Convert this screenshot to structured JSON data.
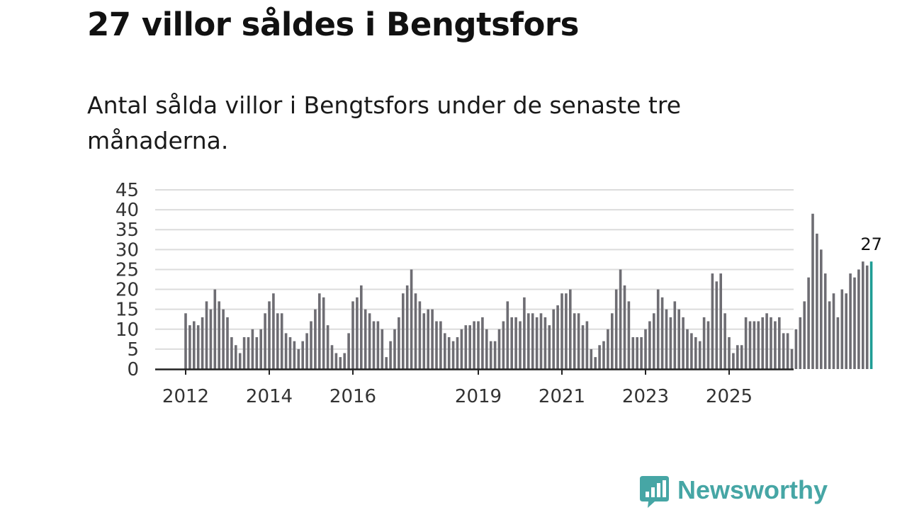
{
  "title": "27 villor såldes i Bengtsfors",
  "subtitle": "Antal sålda villor i Bengtsfors under de senaste tre månaderna.",
  "brand": {
    "name": "Newsworthy",
    "color": "#46a6a5"
  },
  "colors": {
    "bar": "#6e6d73",
    "highlight": "#1f9d95",
    "grid": "#dcdcdc",
    "axis": "#222222",
    "text": "#333333"
  },
  "chart_data": {
    "type": "bar",
    "title": "27 villor såldes i Bengtsfors",
    "xlabel": "",
    "ylabel": "",
    "ylim": [
      0,
      45
    ],
    "yticks": [
      0,
      5,
      10,
      15,
      20,
      25,
      30,
      35,
      40,
      45
    ],
    "xticks": [
      {
        "label": "2012",
        "index": 0
      },
      {
        "label": "2014",
        "index": 20
      },
      {
        "label": "2016",
        "index": 40
      },
      {
        "label": "2019",
        "index": 70
      },
      {
        "label": "2021",
        "index": 90
      },
      {
        "label": "2023",
        "index": 110
      },
      {
        "label": "2025",
        "index": 130
      }
    ],
    "values": [
      14,
      11,
      12,
      11,
      13,
      17,
      15,
      20,
      17,
      15,
      13,
      8,
      6,
      4,
      8,
      8,
      10,
      8,
      10,
      14,
      17,
      19,
      14,
      14,
      9,
      8,
      7,
      5,
      7,
      9,
      12,
      15,
      19,
      18,
      11,
      6,
      4,
      3,
      4,
      9,
      17,
      18,
      21,
      15,
      14,
      12,
      12,
      10,
      3,
      7,
      10,
      13,
      19,
      21,
      25,
      19,
      17,
      14,
      15,
      15,
      12,
      12,
      9,
      8,
      7,
      8,
      10,
      11,
      11,
      12,
      12,
      13,
      10,
      7,
      7,
      10,
      12,
      17,
      13,
      13,
      12,
      18,
      14,
      14,
      13,
      14,
      13,
      11,
      15,
      16,
      19,
      19,
      20,
      14,
      14,
      11,
      12,
      5,
      3,
      6,
      7,
      10,
      14,
      20,
      25,
      21,
      17,
      8,
      8,
      8,
      10,
      12,
      14,
      20,
      18,
      15,
      13,
      17,
      15,
      13,
      10,
      9,
      8,
      7,
      13,
      12,
      24,
      22,
      24,
      14,
      8,
      4,
      6,
      6,
      13,
      12,
      12,
      12,
      13,
      14,
      13,
      12,
      13,
      9,
      9,
      5,
      10,
      13,
      17,
      23,
      39,
      34,
      30,
      24,
      17,
      19,
      13,
      20,
      19,
      24,
      23,
      25,
      27,
      26,
      27
    ],
    "highlight_index": 164,
    "annotation": {
      "index": 164,
      "label": "27"
    }
  }
}
